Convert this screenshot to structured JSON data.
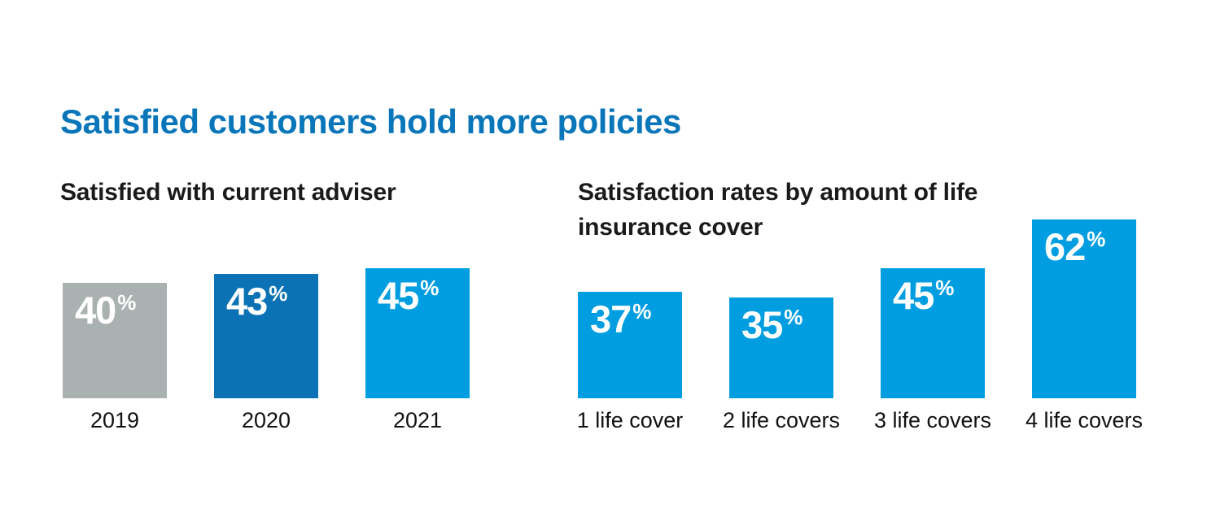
{
  "title": {
    "text": "Satisfied customers hold more policies"
  },
  "colors": {
    "title_blue": "#0a76ba",
    "dark_blue": "#0a72b5",
    "light_blue": "#009ee0",
    "gray": "#aab1b1",
    "value_text": "#ffffff",
    "heading_text": "#1a1a1a",
    "background": "#ffffff"
  },
  "chart_data": [
    {
      "type": "bar",
      "title": "Satisfied with current adviser",
      "categories": [
        "2019",
        "2020",
        "2021"
      ],
      "values": [
        40,
        43,
        45
      ],
      "unit": "%",
      "bar_colors": [
        "#aab1b1",
        "#0a72b5",
        "#009ee0"
      ],
      "value_label_position": "inside-top-left",
      "axes_visible": false,
      "grid": false,
      "ylim": [
        0,
        65
      ]
    },
    {
      "type": "bar",
      "title": "Satisfaction rates by amount of life insurance cover",
      "categories": [
        "1 life cover",
        "2 life covers",
        "3 life covers",
        "4 life covers"
      ],
      "values": [
        37,
        35,
        45,
        62
      ],
      "unit": "%",
      "bar_colors": [
        "#009ee0",
        "#009ee0",
        "#009ee0",
        "#009ee0"
      ],
      "value_label_position": "inside-top-left",
      "axes_visible": false,
      "grid": false,
      "ylim": [
        0,
        65
      ]
    }
  ]
}
